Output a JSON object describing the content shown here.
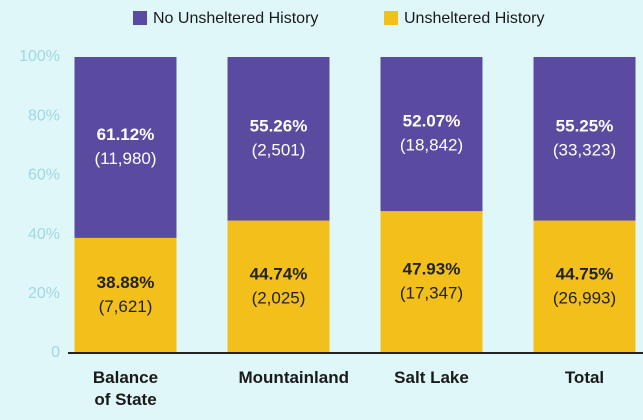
{
  "chart_data": {
    "type": "stacked-bar",
    "categories": [
      "Balance of State",
      "Mountainland",
      "Salt Lake",
      "Total"
    ],
    "series": [
      {
        "name": "No Unsheltered History",
        "color": "#5a4ba0",
        "text_color": "#ffffff",
        "values": [
          61.12,
          55.26,
          52.07,
          55.25
        ],
        "value_labels": [
          "61.12%",
          "55.26%",
          "52.07%",
          "55.25%"
        ],
        "count_labels": [
          "(11,980)",
          "(2,501)",
          "(18,842)",
          "(33,323)"
        ]
      },
      {
        "name": "Unsheltered History",
        "color": "#f3bf1a",
        "text_color": "#222222",
        "values": [
          38.88,
          44.74,
          47.93,
          44.75
        ],
        "value_labels": [
          "38.88%",
          "44.74%",
          "47.93%",
          "44.75%"
        ],
        "count_labels": [
          "(7,621)",
          "(2,025)",
          "(17,347)",
          "(26,993)"
        ]
      }
    ],
    "ylim": [
      0,
      100
    ],
    "yticks": [
      0,
      {
        "value": 20,
        "label": "20%"
      },
      {
        "value": 40,
        "label": "40%"
      },
      {
        "value": 60,
        "label": "60%"
      },
      {
        "value": 80,
        "label": "80%"
      },
      {
        "value": 100,
        "label": "100%"
      }
    ],
    "grid": false
  }
}
